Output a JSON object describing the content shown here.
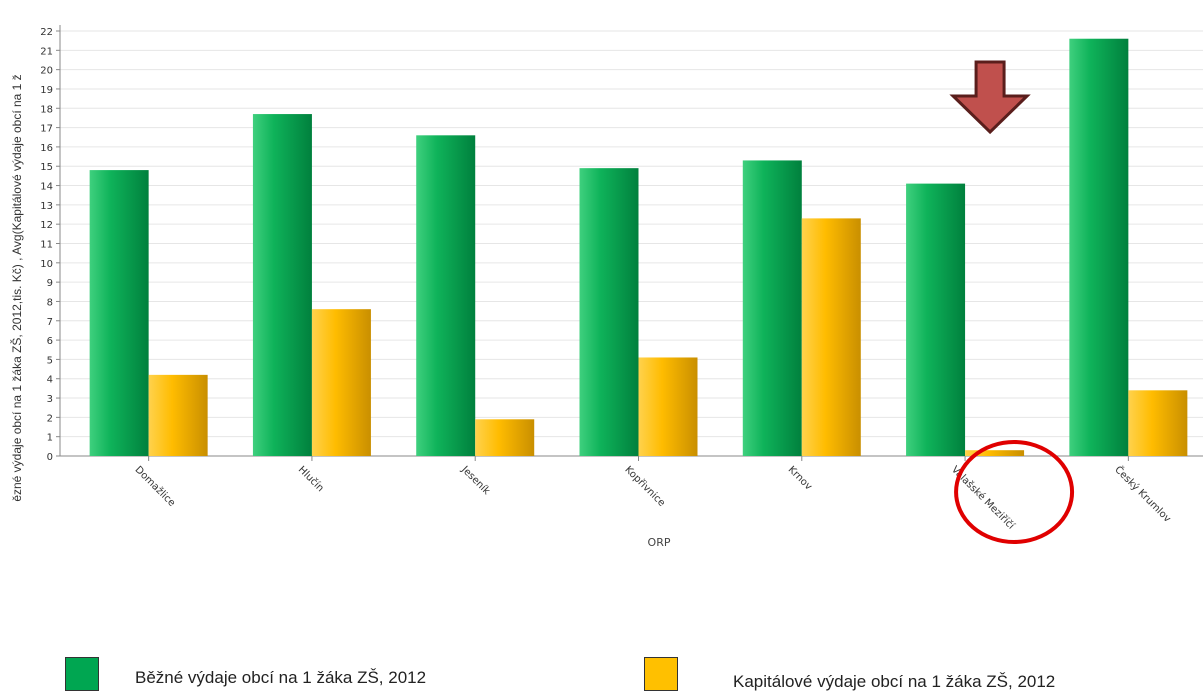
{
  "chart_data": {
    "type": "bar",
    "xlabel": "ORP",
    "ylabel": "ězné výdaje obcí na 1 žáka ZŠ, 2012,tis. Kč) , Avg(Kapitálové výdaje obcí na 1 ž",
    "ylim": [
      0,
      22
    ],
    "yticks": [
      "0",
      "1",
      "2",
      "3",
      "4",
      "5",
      "6",
      "7",
      "8",
      "9",
      "10",
      "11",
      "12",
      "13",
      "14",
      "15",
      "16",
      "17",
      "18",
      "19",
      "20",
      "21",
      "22"
    ],
    "categories": [
      "Domažlice",
      "Hlučín",
      "Jeseník",
      "Kopřivnice",
      "Krnov",
      "Valašské Meziříčí",
      "Český Krumlov"
    ],
    "series": [
      {
        "name": "Běžné výdaje obcí na 1 žáka ZŠ, 2012",
        "color": "#00a651",
        "values": [
          14.8,
          17.7,
          16.6,
          14.9,
          15.3,
          14.1,
          21.6
        ]
      },
      {
        "name": "Kapitálové výdaje obcí na 1 žáka ZŠ, 2012",
        "color": "#ffc000",
        "values": [
          4.2,
          7.6,
          1.9,
          5.1,
          12.3,
          0.3,
          3.4
        ]
      }
    ],
    "grid": true,
    "legend_position": "bottom",
    "annotations": [
      {
        "type": "arrow-down",
        "target": "Valašské Meziříčí",
        "color": "#c0504d"
      },
      {
        "type": "circle",
        "target": "Valašské Meziříčí",
        "color": "#e00000"
      }
    ]
  }
}
